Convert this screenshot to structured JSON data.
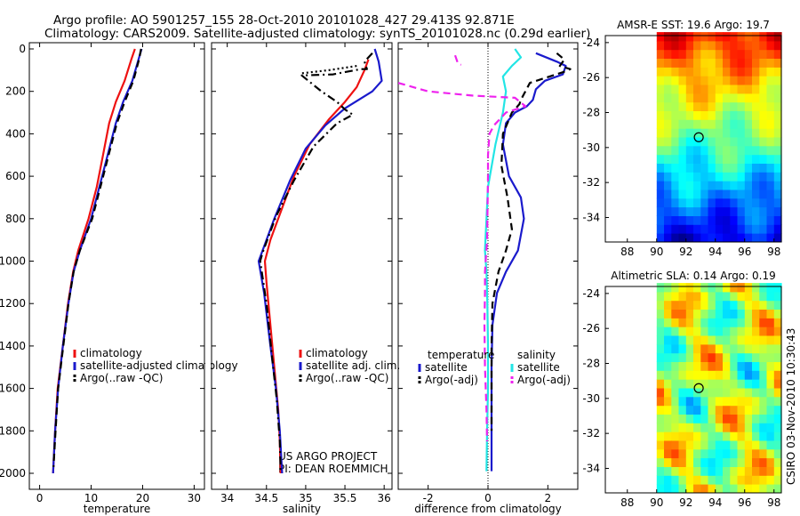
{
  "header": {
    "line1": "Argo profile: AO 5901257_155 28-Oct-2010 20101028_427 29.413S 92.871E",
    "line2": "Climatology: CARS2009. Satellite-adjusted climatology: synTS_20101028.nc (0.29d earlier)"
  },
  "side_label": "CSIRO 03-Nov-2010 10:30:43",
  "credits": [
    "US ARGO PROJECT",
    "PI: DEAN ROEMMICH"
  ],
  "colors": {
    "clim": "#ee1111",
    "sat": "#1a1acc",
    "argo": "#000000",
    "salsat": "#22e5e5",
    "salargo": "#ee22ee"
  },
  "chart_data": [
    {
      "name": "temperature",
      "type": "line",
      "xlabel": "temperature",
      "xlim": [
        -2,
        32
      ],
      "ylim": [
        0,
        2050
      ],
      "xticks": [
        0,
        10,
        20,
        30
      ],
      "yticks": [
        0,
        200,
        400,
        600,
        800,
        1000,
        1200,
        1400,
        1600,
        1800,
        2000
      ],
      "legend": [
        "climatology",
        "satellite-adjusted climatology",
        "Argo(..raw -QC)"
      ],
      "series": [
        {
          "name": "climatology",
          "color": "clim",
          "style": "solid",
          "points": [
            [
              18.5,
              0
            ],
            [
              17.8,
              50
            ],
            [
              16.5,
              150
            ],
            [
              14.8,
              250
            ],
            [
              13.5,
              350
            ],
            [
              12.3,
              500
            ],
            [
              11.1,
              650
            ],
            [
              9.5,
              800
            ],
            [
              7.5,
              950
            ],
            [
              6.5,
              1050
            ],
            [
              5.5,
              1200
            ],
            [
              4.5,
              1400
            ],
            [
              3.5,
              1600
            ],
            [
              3,
              1800
            ],
            [
              2.6,
              2000
            ]
          ]
        },
        {
          "name": "satellite",
          "color": "sat",
          "style": "solid",
          "points": [
            [
              19.8,
              0
            ],
            [
              19.2,
              50
            ],
            [
              18,
              150
            ],
            [
              16.2,
              250
            ],
            [
              14.8,
              350
            ],
            [
              13.2,
              500
            ],
            [
              11.6,
              650
            ],
            [
              10,
              800
            ],
            [
              7.8,
              950
            ],
            [
              6.6,
              1050
            ],
            [
              5.6,
              1200
            ],
            [
              4.5,
              1400
            ],
            [
              3.6,
              1600
            ],
            [
              3,
              1800
            ],
            [
              2.6,
              2000
            ]
          ]
        },
        {
          "name": "argo",
          "color": "argo",
          "style": "dash",
          "points": [
            [
              19.7,
              0
            ],
            [
              19.3,
              50
            ],
            [
              18.2,
              150
            ],
            [
              16.5,
              250
            ],
            [
              15,
              350
            ],
            [
              13.4,
              500
            ],
            [
              11.8,
              650
            ],
            [
              10.2,
              800
            ],
            [
              7.8,
              950
            ],
            [
              6.6,
              1050
            ],
            [
              5.6,
              1200
            ],
            [
              4.6,
              1400
            ],
            [
              3.6,
              1600
            ],
            [
              3.1,
              1800
            ],
            [
              2.7,
              1970
            ]
          ]
        }
      ]
    },
    {
      "name": "salinity",
      "type": "line",
      "xlabel": "salinity",
      "xlim": [
        33.8,
        36.1
      ],
      "ylim": [
        0,
        2050
      ],
      "xticks": [
        34,
        34.5,
        35,
        35.5,
        36
      ],
      "legend": [
        "climatology",
        "satellite adj. clim.",
        "Argo(..raw -QC)"
      ],
      "series": [
        {
          "name": "climatology",
          "color": "clim",
          "style": "solid",
          "points": [
            [
              35.8,
              50
            ],
            [
              35.75,
              100
            ],
            [
              35.65,
              180
            ],
            [
              35.5,
              250
            ],
            [
              35.3,
              330
            ],
            [
              35.05,
              450
            ],
            [
              34.85,
              600
            ],
            [
              34.7,
              750
            ],
            [
              34.55,
              900
            ],
            [
              34.48,
              1000
            ],
            [
              34.5,
              1100
            ],
            [
              34.55,
              1300
            ],
            [
              34.6,
              1500
            ],
            [
              34.65,
              1700
            ],
            [
              34.67,
              1850
            ],
            [
              34.68,
              2000
            ]
          ]
        },
        {
          "name": "satellite",
          "color": "sat",
          "style": "solid",
          "points": [
            [
              35.88,
              0
            ],
            [
              35.93,
              60
            ],
            [
              35.97,
              150
            ],
            [
              35.85,
              200
            ],
            [
              35.5,
              280
            ],
            [
              35.25,
              360
            ],
            [
              35,
              470
            ],
            [
              34.8,
              620
            ],
            [
              34.6,
              800
            ],
            [
              34.45,
              950
            ],
            [
              34.4,
              1000
            ],
            [
              34.47,
              1150
            ],
            [
              34.55,
              1400
            ],
            [
              34.62,
              1600
            ],
            [
              34.67,
              1800
            ],
            [
              34.7,
              2000
            ]
          ]
        },
        {
          "name": "argo-dotted",
          "color": "argo",
          "style": "dot",
          "points": [
            [
              35.65,
              80
            ],
            [
              35.3,
              100
            ],
            [
              34.95,
              115
            ]
          ]
        },
        {
          "name": "argo",
          "color": "argo",
          "style": "dashdot",
          "points": [
            [
              35.85,
              20
            ],
            [
              35.75,
              60
            ],
            [
              35.78,
              95
            ],
            [
              35.7,
              95
            ],
            [
              35.35,
              120
            ],
            [
              34.95,
              125
            ],
            [
              35.2,
              200
            ],
            [
              35.4,
              250
            ],
            [
              35.5,
              285
            ],
            [
              35.6,
              310
            ],
            [
              35.4,
              350
            ],
            [
              35.1,
              460
            ],
            [
              34.85,
              620
            ],
            [
              34.62,
              790
            ],
            [
              34.45,
              960
            ],
            [
              34.42,
              1000
            ],
            [
              34.5,
              1200
            ],
            [
              34.57,
              1450
            ],
            [
              34.63,
              1650
            ],
            [
              34.67,
              1850
            ],
            [
              34.68,
              1990
            ]
          ]
        }
      ]
    },
    {
      "name": "difference",
      "type": "line",
      "xlabel": "difference from climatology",
      "xlim": [
        -3,
        3
      ],
      "ylim": [
        0,
        2050
      ],
      "xticks": [
        -2,
        0,
        2
      ],
      "legend_headers": [
        "temperature",
        "salinity"
      ],
      "legend": [
        "satellite",
        "Argo(-adj)",
        "satellite",
        "Argo(-adj)"
      ],
      "series": [
        {
          "name": "temp-satellite",
          "color": "sat",
          "style": "solid",
          "points": [
            [
              1.6,
              20
            ],
            [
              2.3,
              60
            ],
            [
              2.6,
              80
            ],
            [
              2.5,
              120
            ],
            [
              1.9,
              150
            ],
            [
              1.6,
              190
            ],
            [
              1.5,
              240
            ],
            [
              1.3,
              270
            ],
            [
              0.9,
              300
            ],
            [
              0.6,
              350
            ],
            [
              0.5,
              450
            ],
            [
              0.7,
              600
            ],
            [
              1.1,
              700
            ],
            [
              1.2,
              800
            ],
            [
              1,
              950
            ],
            [
              0.6,
              1050
            ],
            [
              0.3,
              1150
            ],
            [
              0.15,
              1300
            ],
            [
              0.12,
              1500
            ],
            [
              0.12,
              1700
            ],
            [
              0.12,
              1850
            ],
            [
              0.12,
              1990
            ]
          ]
        },
        {
          "name": "temp-argo",
          "color": "argo",
          "style": "dash",
          "points": [
            [
              2.3,
              20
            ],
            [
              2.55,
              50
            ],
            [
              2.4,
              80
            ],
            [
              2.75,
              95
            ],
            [
              2.5,
              110
            ],
            [
              1.4,
              160
            ],
            [
              1.1,
              240
            ],
            [
              1.05,
              260
            ],
            [
              0.8,
              300
            ],
            [
              0.5,
              400
            ],
            [
              0.45,
              550
            ],
            [
              0.65,
              700
            ],
            [
              0.8,
              850
            ],
            [
              0.6,
              950
            ],
            [
              0.35,
              1050
            ],
            [
              0.15,
              1200
            ],
            [
              0.12,
              1400
            ],
            [
              0.12,
              1600
            ],
            [
              0.12,
              1800
            ]
          ]
        },
        {
          "name": "sal-satellite",
          "color": "salsat",
          "style": "solid",
          "points": [
            [
              0.9,
              0
            ],
            [
              1.1,
              40
            ],
            [
              0.8,
              80
            ],
            [
              0.5,
              130
            ],
            [
              0.6,
              200
            ],
            [
              0.5,
              300
            ],
            [
              0.25,
              450
            ],
            [
              0,
              650
            ],
            [
              -0.05,
              800
            ],
            [
              -0.1,
              950
            ],
            [
              -0.05,
              1050
            ],
            [
              -0.02,
              1200
            ],
            [
              0,
              1400
            ],
            [
              0,
              1600
            ],
            [
              -0.03,
              1800
            ],
            [
              -0.05,
              1990
            ]
          ]
        },
        {
          "name": "sal-argo-top",
          "color": "salargo",
          "style": "dash",
          "points": [
            [
              -1.1,
              30
            ],
            [
              -1,
              70
            ],
            [
              -0.9,
              75
            ]
          ]
        },
        {
          "name": "sal-argo",
          "color": "salargo",
          "style": "dash",
          "points": [
            [
              -3,
              160
            ],
            [
              -2,
              200
            ],
            [
              -0.5,
              220
            ],
            [
              0.9,
              230
            ],
            [
              1.25,
              270
            ],
            [
              0.6,
              300
            ],
            [
              0.4,
              330
            ],
            [
              0.2,
              360
            ],
            [
              0.05,
              400
            ],
            [
              0,
              500
            ],
            [
              0,
              600
            ],
            [
              -0.03,
              900
            ],
            [
              -0.1,
              1050
            ],
            [
              -0.1,
              1150
            ],
            [
              -0.12,
              1300
            ],
            [
              -0.1,
              1500
            ],
            [
              -0.05,
              1700
            ],
            [
              -0.03,
              1850
            ]
          ]
        }
      ]
    },
    {
      "name": "AMSR-E SST",
      "type": "heatmap",
      "title": "AMSR-E SST: 19.6 Argo: 19.7",
      "xlim": [
        86.5,
        98.5
      ],
      "ylim": [
        -35.4,
        -23.6
      ],
      "xticks": [
        88,
        90,
        92,
        94,
        96,
        98
      ],
      "yticks": [
        -24,
        -26,
        -28,
        -30,
        -32,
        -34
      ],
      "data_xrange": [
        90,
        98.5
      ],
      "marker": [
        92.87,
        -29.41
      ]
    },
    {
      "name": "Altimetric SLA",
      "type": "heatmap",
      "title": "Altimetric SLA: 0.14 Argo: 0.19",
      "xlim": [
        86.5,
        98.5
      ],
      "ylim": [
        -35.4,
        -23.6
      ],
      "xticks": [
        88,
        90,
        92,
        94,
        96,
        98
      ],
      "yticks": [
        -24,
        -26,
        -28,
        -30,
        -32,
        -34
      ],
      "data_xrange": [
        90,
        98.5
      ],
      "marker": [
        92.87,
        -29.41
      ]
    }
  ]
}
